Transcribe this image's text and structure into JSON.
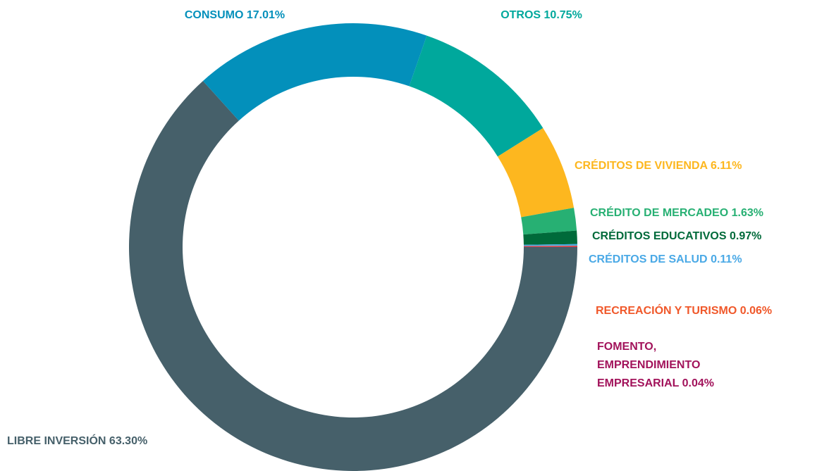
{
  "chart_data": {
    "type": "donut",
    "categories": [
      "LIBRE INVERSIÓN",
      "CONSUMO",
      "OTROS",
      "CRÉDITOS DE VIVIENDA",
      "CRÉDITO DE MERCADEO",
      "CRÉDITOS EDUCATIVOS",
      "CRÉDITOS DE SALUD",
      "RECREACIÓN Y TURISMO",
      "FOMENTO, EMPRENDIMIENTO EMPRESARIAL"
    ],
    "values": [
      63.3,
      17.01,
      10.75,
      6.11,
      1.63,
      0.97,
      0.11,
      0.06,
      0.04
    ],
    "value_labels": [
      "63.30%",
      "17.01%",
      "10.75%",
      "6.11%",
      "1.63%",
      "0.97%",
      "0.11%",
      "0.06%",
      "0.04%"
    ],
    "colors": [
      "#46606a",
      "#0390bb",
      "#00a89c",
      "#fdb71f",
      "#27b073",
      "#006a3a",
      "#4aa9e6",
      "#f0582a",
      "#a2135b"
    ]
  }
}
